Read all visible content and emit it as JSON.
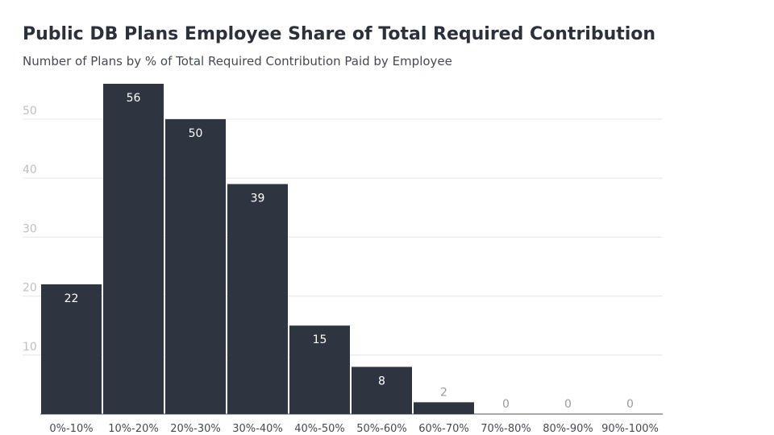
{
  "title": "Public DB Plans Employee Share of Total Required Contribution",
  "subtitle": "Number of Plans by % of Total Required Contribution Paid by Employee",
  "colors": {
    "bar": "#2e3440",
    "grid": "#e6e6e6",
    "tick_text": "#bfbfbf",
    "category_text": "#444a55",
    "label_inside": "#ffffff",
    "label_outside": "#9a9a9a"
  },
  "chart_data": {
    "type": "bar",
    "title": "Public DB Plans Employee Share of Total Required Contribution",
    "subtitle": "Number of Plans by % of Total Required Contribution Paid by Employee",
    "xlabel": "",
    "ylabel": "",
    "categories": [
      "0%-10%",
      "10%-20%",
      "20%-30%",
      "30%-40%",
      "40%-50%",
      "50%-60%",
      "60%-70%",
      "70%-80%",
      "80%-90%",
      "90%-100%"
    ],
    "values": [
      22,
      56,
      50,
      39,
      15,
      8,
      2,
      0,
      0,
      0
    ],
    "yticks": [
      10,
      20,
      30,
      40,
      50
    ],
    "ylim": [
      0,
      56
    ],
    "grid": true,
    "data_labels": true
  }
}
